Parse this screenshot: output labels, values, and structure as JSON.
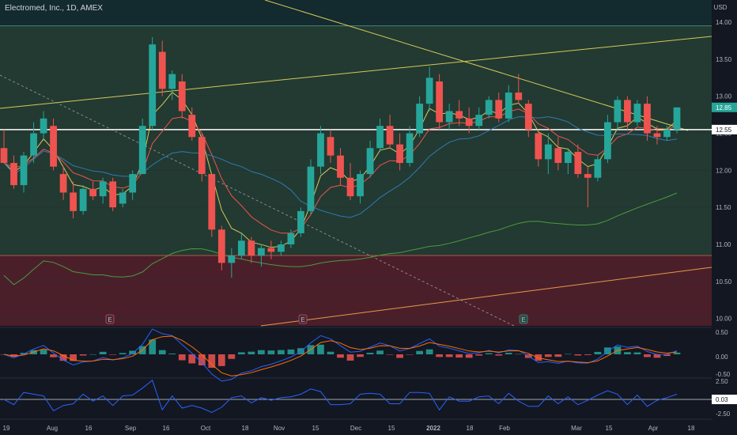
{
  "header": {
    "title": "Electromed, Inc., 1D, AMEX"
  },
  "chart_data": {
    "type": "candlestick",
    "symbol": "Electromed, Inc.",
    "interval": "1D",
    "exchange": "AMEX",
    "currency": "USD",
    "ylim": [
      9.9,
      14.3
    ],
    "y_ticks": [
      "14.00",
      "13.50",
      "13.00",
      "12.50",
      "12.00",
      "11.50",
      "11.00",
      "10.50",
      "10.00"
    ],
    "x_ticks": [
      "19",
      "Aug",
      "16",
      "Sep",
      "16",
      "Oct",
      "18",
      "Nov",
      "15",
      "Dec",
      "15",
      "2022",
      "18",
      "Feb",
      "Mar",
      "15",
      "Apr",
      "18"
    ],
    "last_price": "12.85",
    "reference_line_label": "12.55",
    "earnings_markers": [
      "E",
      "E",
      "E"
    ],
    "candles_ohlc_approx": [
      [
        12.3,
        12.55,
        12.15,
        12.1
      ],
      [
        12.1,
        12.2,
        11.75,
        11.8
      ],
      [
        11.8,
        12.25,
        11.7,
        12.2
      ],
      [
        12.2,
        12.65,
        12.1,
        12.5
      ],
      [
        12.5,
        12.8,
        12.4,
        12.7
      ],
      [
        12.6,
        12.7,
        12.0,
        12.05
      ],
      [
        11.95,
        12.05,
        11.6,
        11.7
      ],
      [
        11.7,
        11.85,
        11.35,
        11.45
      ],
      [
        11.45,
        11.8,
        11.4,
        11.75
      ],
      [
        11.75,
        11.85,
        11.6,
        11.65
      ],
      [
        11.65,
        11.9,
        11.55,
        11.85
      ],
      [
        11.85,
        11.9,
        11.45,
        11.5
      ],
      [
        11.55,
        11.75,
        11.5,
        11.7
      ],
      [
        11.7,
        12.0,
        11.6,
        11.95
      ],
      [
        11.95,
        12.7,
        11.95,
        12.6
      ],
      [
        12.6,
        13.8,
        12.55,
        13.7
      ],
      [
        13.6,
        13.75,
        13.0,
        13.1
      ],
      [
        13.1,
        13.35,
        12.95,
        13.3
      ],
      [
        13.2,
        13.3,
        12.7,
        12.8
      ],
      [
        12.75,
        12.85,
        12.4,
        12.45
      ],
      [
        12.45,
        12.5,
        11.85,
        11.95
      ],
      [
        11.95,
        11.95,
        11.1,
        11.2
      ],
      [
        11.2,
        11.25,
        10.65,
        10.75
      ],
      [
        10.75,
        10.95,
        10.55,
        10.85
      ],
      [
        10.85,
        11.15,
        10.8,
        11.05
      ],
      [
        11.05,
        11.1,
        10.75,
        10.85
      ],
      [
        10.85,
        11.0,
        10.7,
        10.95
      ],
      [
        10.95,
        11.05,
        10.8,
        10.9
      ],
      [
        10.9,
        11.05,
        10.85,
        11.0
      ],
      [
        11.0,
        11.2,
        10.95,
        11.15
      ],
      [
        11.15,
        11.5,
        11.1,
        11.45
      ],
      [
        11.45,
        12.15,
        11.4,
        12.05
      ],
      [
        12.05,
        12.6,
        11.95,
        12.5
      ],
      [
        12.45,
        12.55,
        12.1,
        12.2
      ],
      [
        12.2,
        12.3,
        11.8,
        11.9
      ],
      [
        11.9,
        12.1,
        11.6,
        11.65
      ],
      [
        11.65,
        12.0,
        11.55,
        11.95
      ],
      [
        11.95,
        12.4,
        11.9,
        12.3
      ],
      [
        12.3,
        12.7,
        12.25,
        12.6
      ],
      [
        12.6,
        12.75,
        12.3,
        12.35
      ],
      [
        12.35,
        12.5,
        12.0,
        12.1
      ],
      [
        12.1,
        12.6,
        12.05,
        12.5
      ],
      [
        12.5,
        13.0,
        12.45,
        12.9
      ],
      [
        12.9,
        13.4,
        12.8,
        13.25
      ],
      [
        13.2,
        13.3,
        12.55,
        12.65
      ],
      [
        12.65,
        12.9,
        12.55,
        12.8
      ],
      [
        12.8,
        12.95,
        12.6,
        12.7
      ],
      [
        12.7,
        12.85,
        12.5,
        12.6
      ],
      [
        12.6,
        12.85,
        12.55,
        12.75
      ],
      [
        12.75,
        13.0,
        12.7,
        12.95
      ],
      [
        12.95,
        13.05,
        12.65,
        12.7
      ],
      [
        12.7,
        13.15,
        12.65,
        13.05
      ],
      [
        13.05,
        13.3,
        12.9,
        12.95
      ],
      [
        12.9,
        12.95,
        12.45,
        12.55
      ],
      [
        12.5,
        12.55,
        12.05,
        12.15
      ],
      [
        12.15,
        12.5,
        11.95,
        12.35
      ],
      [
        12.3,
        12.45,
        12.0,
        12.1
      ],
      [
        12.1,
        12.3,
        11.95,
        12.25
      ],
      [
        12.25,
        12.35,
        11.9,
        11.95
      ],
      [
        11.95,
        12.05,
        11.5,
        11.9
      ],
      [
        11.9,
        12.2,
        11.85,
        12.15
      ],
      [
        12.15,
        12.75,
        12.1,
        12.65
      ],
      [
        12.65,
        13.0,
        12.55,
        12.95
      ],
      [
        12.95,
        13.0,
        12.55,
        12.65
      ],
      [
        12.65,
        12.95,
        12.6,
        12.9
      ],
      [
        12.9,
        13.0,
        12.4,
        12.5
      ],
      [
        12.5,
        12.6,
        12.35,
        12.45
      ],
      [
        12.45,
        12.6,
        12.4,
        12.55
      ],
      [
        12.55,
        12.85,
        12.5,
        12.85
      ]
    ],
    "lines": {
      "ema_short": "yellow",
      "ema_mid": "red",
      "sma_50": "blue",
      "sma_200": "green"
    },
    "panels": {
      "macd": {
        "y_ticks": [
          "0.50",
          "0.00",
          "-0.50"
        ]
      },
      "oscillator": {
        "y_ticks": [
          "2.50",
          "0.03",
          "-2.50"
        ],
        "last_value": "0.03"
      }
    }
  },
  "colors": {
    "background": "#131722",
    "bull": "#26a69a",
    "bear": "#ef5350",
    "upper_zone": "#223a31",
    "lower_zone": "#4a1f2a",
    "white_line": "#ffffff",
    "yellow": "#d5c85a",
    "orange": "#e79a48",
    "blue": "#3179b5",
    "green": "#4c9a3f"
  }
}
